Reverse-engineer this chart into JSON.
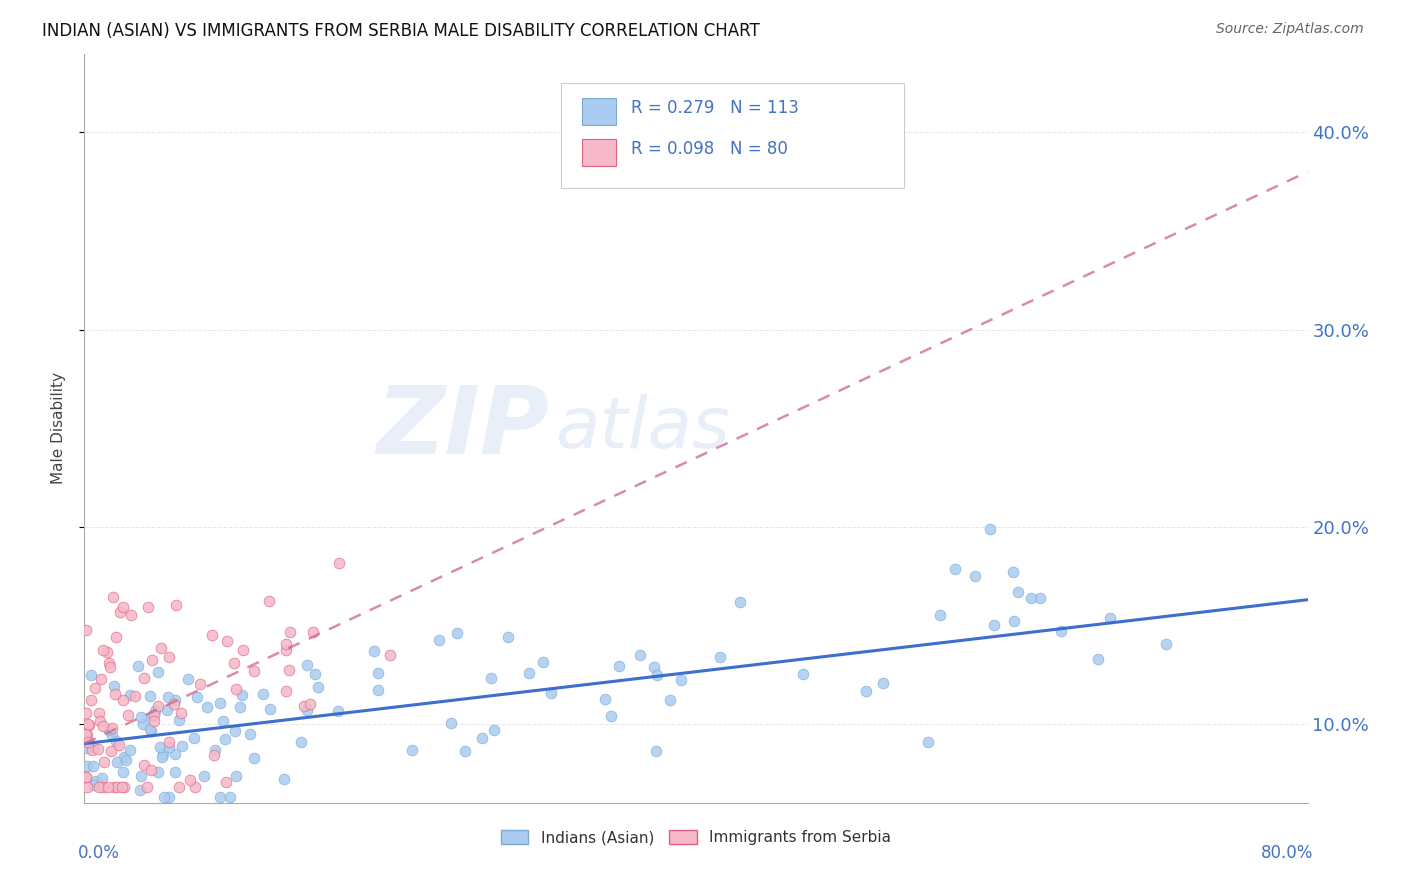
{
  "title": "INDIAN (ASIAN) VS IMMIGRANTS FROM SERBIA MALE DISABILITY CORRELATION CHART",
  "source": "Source: ZipAtlas.com",
  "ylabel": "Male Disability",
  "watermark_part1": "ZIP",
  "watermark_part2": "atlas",
  "series1": {
    "label": "Indians (Asian)",
    "color": "#aaccf0",
    "edge_color": "#7aaad4",
    "R": 0.279,
    "N": 113,
    "trend_color": "#3366cc",
    "trend_style": "-",
    "trend_x": [
      0.0,
      0.8
    ],
    "trend_y": [
      0.09,
      0.163
    ]
  },
  "series2": {
    "label": "Immigrants from Serbia",
    "color": "#f5b8c8",
    "edge_color": "#e06080",
    "R": 0.098,
    "N": 80,
    "trend_color": "#cc6688",
    "trend_style": "--",
    "trend_x": [
      0.0,
      0.8
    ],
    "trend_y": [
      0.09,
      0.38
    ]
  },
  "xlim": [
    0.0,
    0.8
  ],
  "ylim": [
    0.06,
    0.44
  ],
  "yticks": [
    0.1,
    0.2,
    0.3,
    0.4
  ],
  "ytick_labels": [
    "10.0%",
    "20.0%",
    "30.0%",
    "40.0%"
  ],
  "xtick_vals": [
    0.0,
    0.1,
    0.2,
    0.3,
    0.4,
    0.5,
    0.6,
    0.7,
    0.8
  ],
  "background_color": "#ffffff",
  "grid_color": "#e0e0e0",
  "legend_R1": "R = 0.279",
  "legend_N1": "N = 113",
  "legend_R2": "R = 0.098",
  "legend_N2": "N = 80"
}
